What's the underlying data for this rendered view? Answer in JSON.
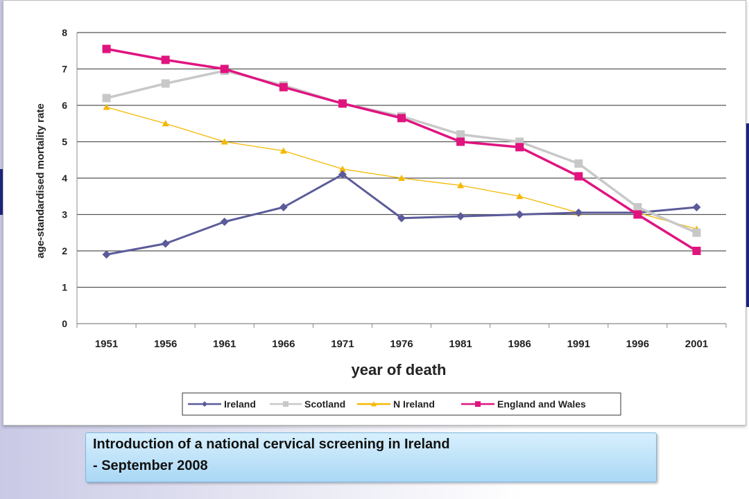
{
  "chart_data": {
    "type": "line",
    "ylabel": "age-standardised mortality rate",
    "xlabel": "year of death",
    "ylim": [
      0,
      8
    ],
    "y_ticks": [
      "0",
      "1",
      "2",
      "3",
      "4",
      "5",
      "6",
      "7",
      "8"
    ],
    "categories": [
      "1951",
      "1956",
      "1961",
      "1966",
      "1971",
      "1976",
      "1981",
      "1986",
      "1991",
      "1996",
      "2001"
    ],
    "grid": "horizontal",
    "legend_position": "bottom",
    "series": [
      {
        "name": "Ireland",
        "color": "#5b5b9a",
        "marker": "diamond",
        "values": [
          1.9,
          2.2,
          2.8,
          3.2,
          4.1,
          2.9,
          2.95,
          3.0,
          3.05,
          3.05,
          3.2
        ]
      },
      {
        "name": "Scotland",
        "color": "#c8c8c8",
        "marker": "square",
        "values": [
          6.2,
          6.6,
          6.95,
          6.55,
          6.05,
          5.7,
          5.2,
          5.0,
          4.4,
          3.2,
          2.5
        ]
      },
      {
        "name": "N Ireland",
        "color": "#f5b800",
        "marker": "triangle",
        "values": [
          5.95,
          5.5,
          5.0,
          4.75,
          4.25,
          4.0,
          3.8,
          3.5,
          3.05,
          3.05,
          2.6
        ]
      },
      {
        "name": "England and Wales",
        "color": "#e0147f",
        "marker": "square",
        "values": [
          7.55,
          7.25,
          7.0,
          6.5,
          6.05,
          5.65,
          5.0,
          4.85,
          4.05,
          3.0,
          2.0
        ]
      }
    ]
  },
  "caption": {
    "line1": "Introduction of a national cervical screening in Ireland",
    "line2": "- September 2008"
  }
}
